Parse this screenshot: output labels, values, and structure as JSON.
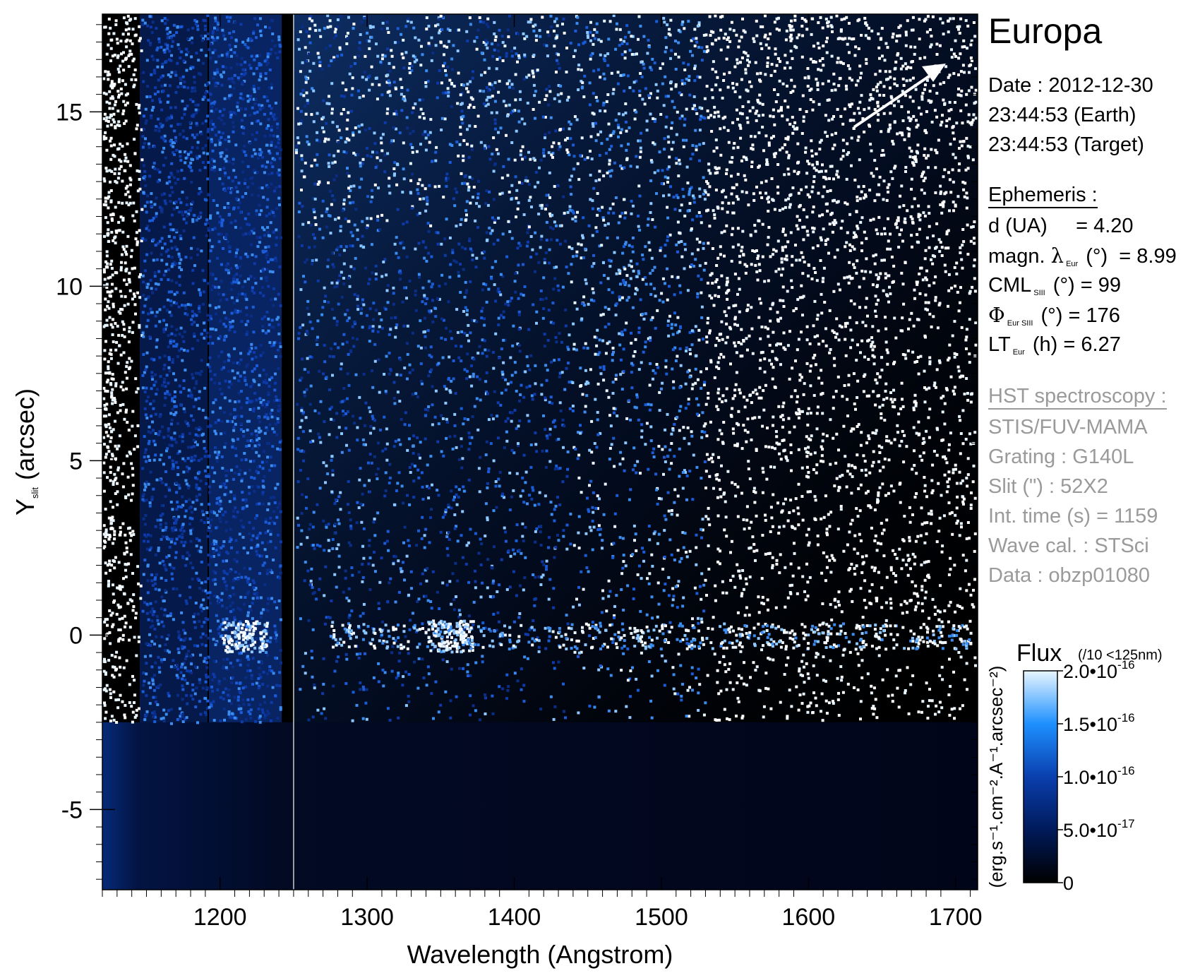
{
  "chart_data": {
    "type": "heatmap",
    "title": "Europa",
    "xlabel": "Wavelength (Angstrom)",
    "ylabel": "Y",
    "ylabel_subscript": "slit",
    "ylabel_unit": "(arcsec)",
    "xlim": [
      1120,
      1715
    ],
    "ylim": [
      -7.3,
      17.8
    ],
    "xticks": [
      1200,
      1300,
      1400,
      1500,
      1600,
      1700
    ],
    "xtick_labels": [
      "1200",
      "1300",
      "1400",
      "1500",
      "1600",
      "1700"
    ],
    "yticks": [
      -5,
      0,
      5,
      10,
      15
    ],
    "ytick_labels": [
      "-5",
      "0",
      "5",
      "10",
      "15"
    ],
    "features": [
      {
        "name": "slit_data_lower_edge_arcsec",
        "value": -2.5
      },
      {
        "name": "wavelength_boundary_angstrom",
        "value": 1250
      },
      {
        "name": "emission_band_center_angstrom",
        "value": 1216
      },
      {
        "name": "emission_band_center_angstrom",
        "value": 1356
      },
      {
        "name": "emission_row_arcsec",
        "value": 0
      }
    ],
    "colorbar": {
      "label": "Flux",
      "note": "(/10 <125nm)",
      "unit": "(erg.s⁻¹.cm⁻².A⁻¹.arcsec⁻²)",
      "min": 0,
      "max": 2e-16,
      "ticks": [
        0,
        5e-17,
        1e-16,
        1.5e-16,
        2e-16
      ],
      "tick_labels": [
        "0",
        "5.0•10",
        "1.0•10",
        "1.5•10",
        "2.0•10"
      ],
      "tick_exponents": [
        "",
        "-17",
        "-16",
        "-16",
        "-16"
      ],
      "colors": [
        "#000000",
        "#001a5a",
        "#0a3fae",
        "#1e90ff",
        "#e8f6ff"
      ]
    }
  },
  "panel": {
    "title": "Europa",
    "date_line": "Date : 2012-12-30",
    "time_earth": "23:44:53 (Earth)",
    "time_target": "23:44:53 (Target)",
    "ephemeris_header": "Ephemeris :",
    "ephemeris": [
      {
        "pre": "d (UA)",
        "sym": "",
        "sub": "",
        "post": "     = 4.20"
      },
      {
        "pre": "magn. ",
        "sym": "λ",
        "sub": "Eur",
        "post": " (°)  = 8.99"
      },
      {
        "pre": "CML",
        "sym": "",
        "sub": "SIII",
        "post": " (°) = 99"
      },
      {
        "pre": "",
        "sym": "Φ",
        "sub": "Eur SIII",
        "post": " (°) = 176"
      },
      {
        "pre": "LT",
        "sym": "",
        "sub": "Eur",
        "post": " (h) = 6.27"
      }
    ],
    "hst_header": "HST spectroscopy :",
    "hst": [
      "STIS/FUV-MAMA",
      "Grating : G140L",
      "Slit (\") : 52X2",
      "Int. time (s) = 1159",
      "Wave cal. : STSci",
      "Data : obzp01080"
    ]
  }
}
